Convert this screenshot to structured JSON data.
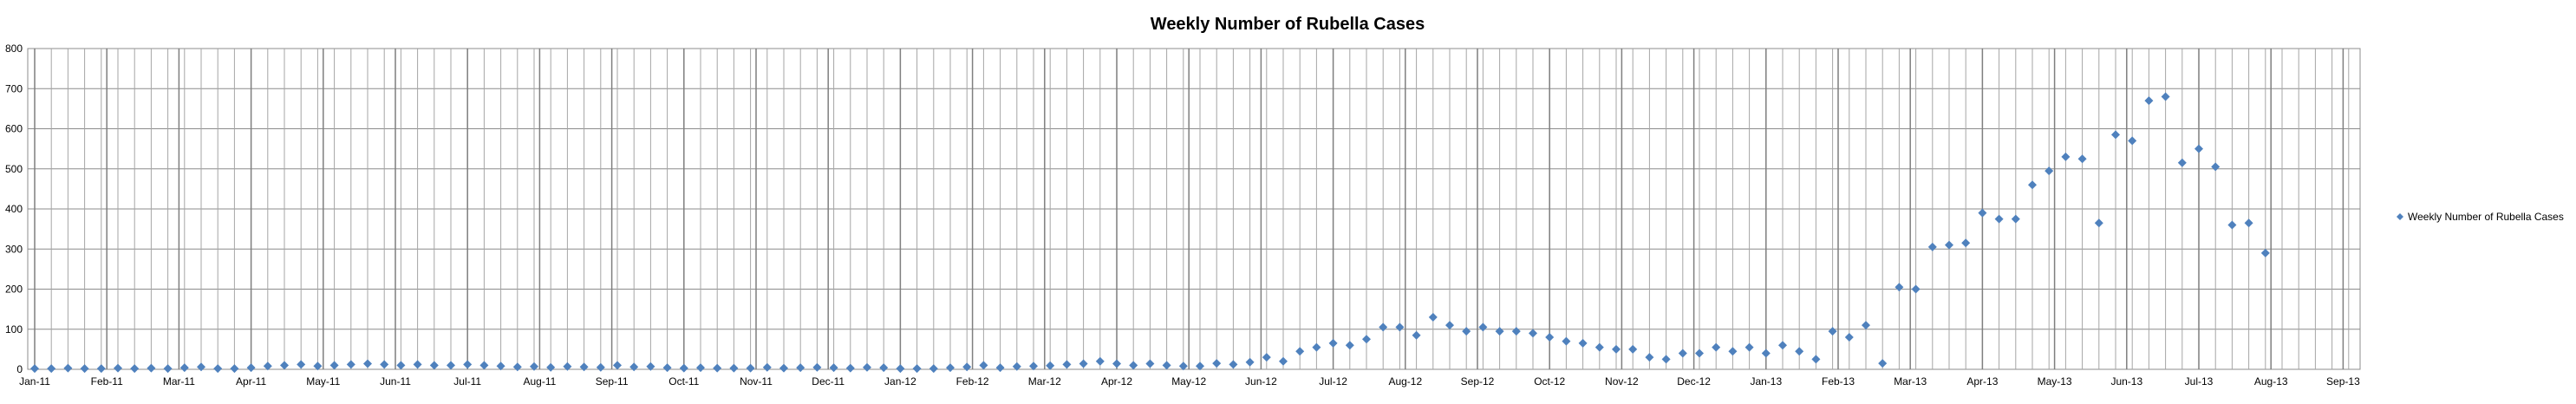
{
  "chart_data": {
    "type": "scatter",
    "title": "Weekly Number of Rubella Cases",
    "xlabel": "",
    "ylabel": "",
    "ylim": [
      0,
      800
    ],
    "y_ticks": [
      "0",
      "100",
      "200",
      "300",
      "400",
      "500",
      "600",
      "700",
      "800"
    ],
    "x_tick_labels": [
      "Jan-11",
      "Feb-11",
      "Mar-11",
      "Apr-11",
      "May-11",
      "Jun-11",
      "Jul-11",
      "Aug-11",
      "Sep-11",
      "Oct-11",
      "Nov-11",
      "Dec-11",
      "Jan-12",
      "Feb-12",
      "Mar-12",
      "Apr-12",
      "May-12",
      "Jun-12",
      "Jul-12",
      "Aug-12",
      "Sep-12",
      "Oct-12",
      "Nov-12",
      "Dec-12",
      "Jan-13",
      "Feb-13",
      "Mar-13",
      "Apr-13",
      "May-13",
      "Jun-13",
      "Jul-13",
      "Aug-13",
      "Sep-13"
    ],
    "grid": true,
    "legend_position": "right",
    "marker_color": "#4F81BD",
    "series": [
      {
        "name": "Weekly Number of Rubella Cases",
        "values": [
          2,
          2,
          3,
          2,
          2,
          3,
          2,
          3,
          2,
          4,
          6,
          2,
          2,
          4,
          8,
          10,
          12,
          8,
          10,
          12,
          14,
          12,
          10,
          12,
          10,
          10,
          12,
          10,
          8,
          6,
          7,
          5,
          7,
          6,
          5,
          10,
          6,
          7,
          4,
          3,
          4,
          3,
          3,
          3,
          5,
          3,
          4,
          5,
          4,
          3,
          5,
          4,
          2,
          2,
          2,
          4,
          6,
          10,
          4,
          7,
          8,
          9,
          12,
          14,
          20,
          14,
          10,
          14,
          10,
          8,
          8,
          15,
          12,
          18,
          30,
          20,
          45,
          55,
          65,
          60,
          75,
          105,
          105,
          85,
          130,
          110,
          95,
          105,
          95,
          95,
          90,
          80,
          70,
          65,
          55,
          50,
          50,
          30,
          25,
          40,
          40,
          55,
          45,
          55,
          40,
          60,
          45,
          25,
          95,
          80,
          110,
          15,
          205,
          200,
          305,
          310,
          315,
          390,
          375,
          375,
          460,
          495,
          530,
          525,
          365,
          585,
          570,
          670,
          680,
          515,
          550,
          505,
          360,
          365,
          290
        ]
      }
    ]
  }
}
